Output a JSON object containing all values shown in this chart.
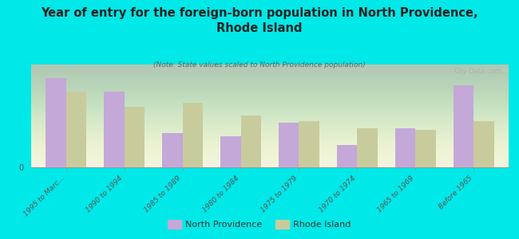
{
  "title": "Year of entry for the foreign-born population in North Providence,\nRhode Island",
  "subtitle": "(Note: State values scaled to North Providence population)",
  "categories": [
    "1995 to Marc...",
    "1990 to 1994",
    "1985 to 1989",
    "1980 to 1984",
    "1975 to 1979",
    "1970 to 1974",
    "1965 to 1969",
    "Before 1965"
  ],
  "north_providence": [
    100,
    85,
    38,
    35,
    50,
    25,
    44,
    92
  ],
  "rhode_island": [
    85,
    68,
    72,
    58,
    52,
    44,
    42,
    52
  ],
  "bar_color_np": "#c4a8d8",
  "bar_color_ri": "#c8cc9d",
  "background_color": "#00e8e8",
  "legend_np": "North Providence",
  "legend_ri": "Rhode Island",
  "watermark": "City-Data.com",
  "bar_width": 0.35,
  "ylim": [
    0,
    115
  ]
}
